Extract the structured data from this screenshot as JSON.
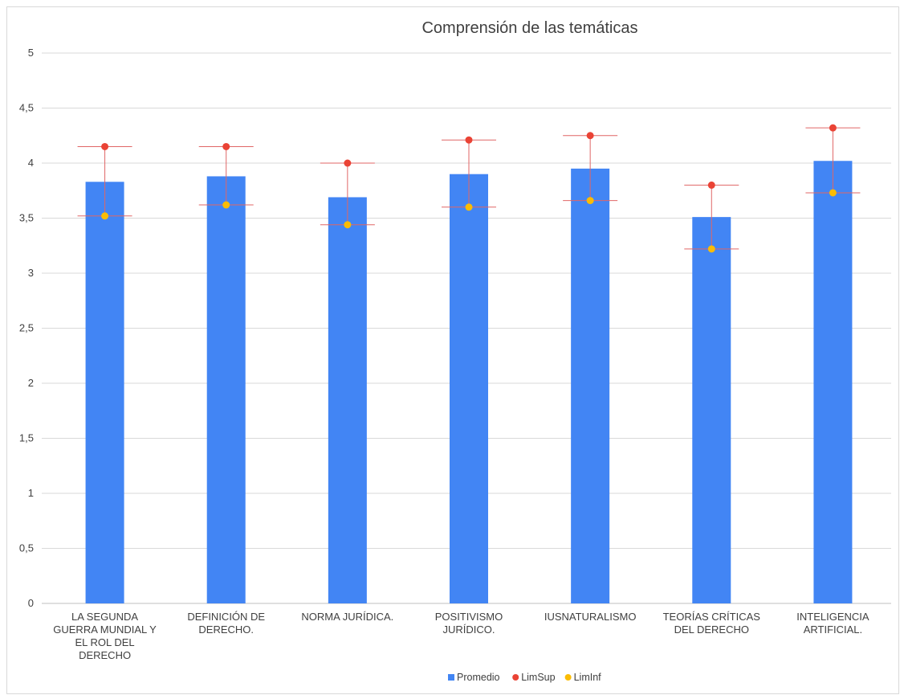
{
  "chart_data": {
    "type": "bar",
    "title": "Comprensión de las temáticas",
    "xlabel": "",
    "ylabel": "",
    "ylim": [
      0,
      5
    ],
    "y_ticks": [
      "0",
      "0,5",
      "1",
      "1,5",
      "2",
      "2,5",
      "3",
      "3,5",
      "4",
      "4,5",
      "5"
    ],
    "grid": true,
    "legend_position": "bottom",
    "categories": [
      [
        "LA SEGUNDA",
        "GUERRA MUNDIAL Y",
        "EL ROL DEL",
        "DERECHO"
      ],
      [
        "DEFINICIÓN DE",
        "DERECHO."
      ],
      [
        "NORMA JURÍDICA."
      ],
      [
        "POSITIVISMO",
        "JURÍDICO."
      ],
      [
        "IUSNATURALISMO"
      ],
      [
        "TEORÍAS CRÍTICAS",
        "DEL DERECHO"
      ],
      [
        "INTELIGENCIA",
        "ARTIFICIAL."
      ]
    ],
    "series": [
      {
        "name": "Promedio",
        "kind": "bar",
        "color": "#4285f4",
        "values": [
          3.83,
          3.88,
          3.69,
          3.9,
          3.95,
          3.51,
          4.02
        ]
      },
      {
        "name": "LimSup",
        "kind": "point",
        "color": "#ea4335",
        "values": [
          4.15,
          4.15,
          4.0,
          4.21,
          4.25,
          3.8,
          4.32
        ]
      },
      {
        "name": "LimInf",
        "kind": "point",
        "color": "#fbbc04",
        "values": [
          3.52,
          3.62,
          3.44,
          3.6,
          3.66,
          3.22,
          3.73
        ]
      }
    ],
    "error_bar_color": "#e06666"
  }
}
